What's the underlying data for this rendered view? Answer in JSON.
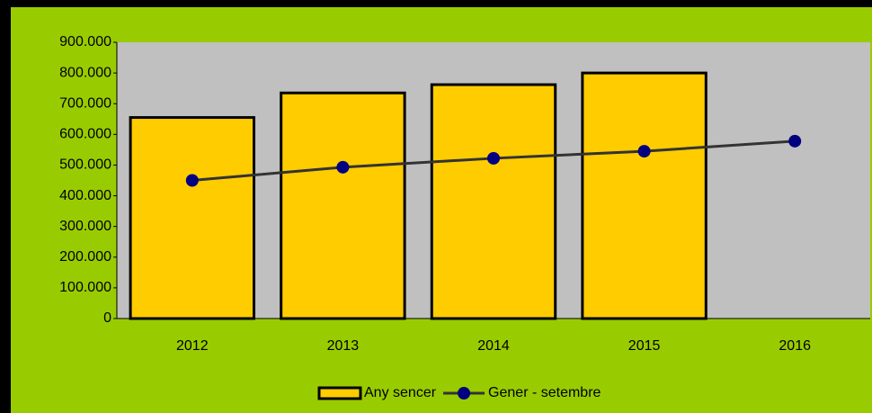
{
  "chart_data": {
    "type": "bar",
    "categories": [
      "2012",
      "2013",
      "2014",
      "2015",
      "2016"
    ],
    "series": [
      {
        "name": "Any sencer",
        "type": "bar",
        "color": "#ffcc00",
        "values": [
          655000,
          735000,
          762000,
          800000,
          null
        ]
      },
      {
        "name": "Gener - setembre",
        "type": "line",
        "color": "#333333",
        "marker_color": "#000080",
        "values": [
          450000,
          493000,
          522000,
          545000,
          578000
        ]
      }
    ],
    "ylim": [
      0,
      900000
    ],
    "yticks": [
      0,
      {
        "value": 100000,
        "label": "100.000"
      },
      {
        "value": 200000,
        "label": "200.000"
      },
      {
        "value": 300000,
        "label": "300.000"
      },
      {
        "value": 400000,
        "label": "400.000"
      },
      {
        "value": 500000,
        "label": "500.000"
      },
      {
        "value": 600000,
        "label": "600.000"
      },
      {
        "value": 700000,
        "label": "700.000"
      },
      {
        "value": 800000,
        "label": "800.000"
      },
      {
        "value": 900000,
        "label": "900.000"
      }
    ],
    "legend": "bottom"
  }
}
